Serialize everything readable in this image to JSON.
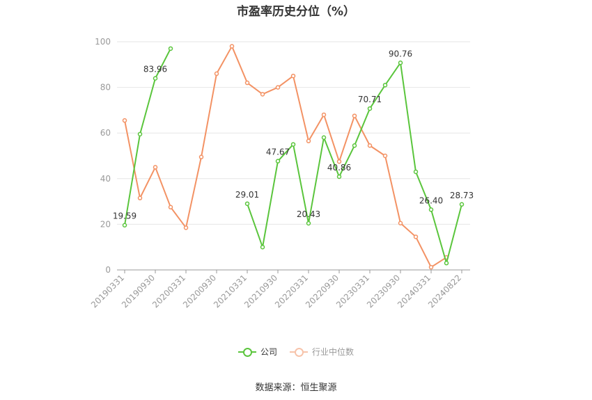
{
  "chart_data": {
    "type": "line",
    "title": "市盈率历史分位（%）",
    "xlabel": "",
    "ylabel": "",
    "ylim": [
      0,
      100
    ],
    "yticks": [
      0,
      20,
      40,
      60,
      80,
      100
    ],
    "x": [
      "20190331",
      "20190630",
      "20190930",
      "20191231",
      "20200331",
      "20200630",
      "20200930",
      "20201231",
      "20210331",
      "20210630",
      "20210930",
      "20211231",
      "20220331",
      "20220630",
      "20220930",
      "20221231",
      "20230331",
      "20230630",
      "20230930",
      "20231231",
      "20240331",
      "20240630",
      "20240822"
    ],
    "x_tick_labels": [
      "20190331",
      "20190930",
      "20200331",
      "20200930",
      "20210331",
      "20210930",
      "20220331",
      "20220930",
      "20230331",
      "20230930",
      "20240331",
      "20240822"
    ],
    "series": [
      {
        "name": "公司",
        "color": "#5ac53c",
        "values": [
          19.59,
          59.5,
          83.96,
          97,
          null,
          null,
          null,
          null,
          29.01,
          10,
          47.67,
          55,
          20.43,
          58,
          40.86,
          54.5,
          70.71,
          81,
          90.76,
          43,
          26.4,
          3,
          28.73
        ]
      },
      {
        "name": "行业中位数",
        "color": "#f39264",
        "values": [
          65.5,
          31.5,
          45,
          27.5,
          18.5,
          49.5,
          86,
          98,
          82,
          77,
          80,
          85,
          56.5,
          68,
          47.5,
          67.5,
          54.5,
          50,
          20.5,
          14.5,
          1.2,
          5.5,
          null
        ]
      }
    ],
    "data_labels": [
      {
        "series": 0,
        "index": 0,
        "text": "19.59"
      },
      {
        "series": 0,
        "index": 2,
        "text": "83.96"
      },
      {
        "series": 0,
        "index": 8,
        "text": "29.01"
      },
      {
        "series": 0,
        "index": 10,
        "text": "47.67"
      },
      {
        "series": 0,
        "index": 12,
        "text": "20.43"
      },
      {
        "series": 0,
        "index": 14,
        "text": "40.86"
      },
      {
        "series": 0,
        "index": 16,
        "text": "70.71"
      },
      {
        "series": 0,
        "index": 18,
        "text": "90.76"
      },
      {
        "series": 0,
        "index": 20,
        "text": "26.40"
      },
      {
        "series": 0,
        "index": 22,
        "text": "28.73"
      }
    ],
    "grid": true,
    "legend_position": "bottom"
  },
  "source": "数据来源：恒生聚源"
}
